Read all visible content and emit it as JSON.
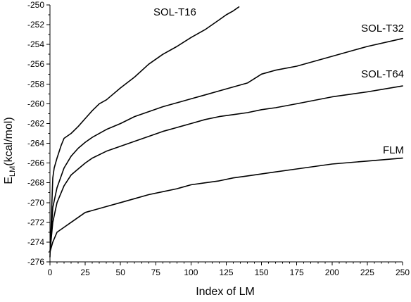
{
  "chart_data": {
    "type": "line",
    "title": "",
    "xlabel": "Index of LM",
    "ylabel_main": "E",
    "ylabel_sub": "LM",
    "ylabel_unit": "(kcal/mol)",
    "xlim": [
      0,
      250
    ],
    "ylim": [
      -276,
      -250
    ],
    "x_ticks": [
      0,
      25,
      50,
      75,
      100,
      125,
      150,
      175,
      200,
      225,
      250
    ],
    "y_ticks": [
      -276,
      -274,
      -272,
      -270,
      -268,
      -266,
      -264,
      -262,
      -260,
      -258,
      -256,
      -254,
      -252,
      -250
    ],
    "grid": false,
    "legend": "inline labels",
    "series": [
      {
        "name": "SOL-T16",
        "x": [
          0,
          1,
          2,
          3,
          5,
          8,
          10,
          15,
          20,
          25,
          30,
          35,
          40,
          50,
          60,
          70,
          80,
          90,
          100,
          110,
          120,
          125,
          130,
          134
        ],
        "y": [
          -275.5,
          -271.5,
          -267.5,
          -266.5,
          -265.5,
          -264.2,
          -263.5,
          -263.0,
          -262.3,
          -261.5,
          -260.7,
          -260.0,
          -259.6,
          -258.4,
          -257.3,
          -256.0,
          -255.0,
          -254.2,
          -253.3,
          -252.5,
          -251.5,
          -251.0,
          -250.6,
          -250.2
        ]
      },
      {
        "name": "SOL-T32",
        "x": [
          0,
          2,
          5,
          10,
          15,
          20,
          25,
          30,
          40,
          50,
          60,
          70,
          80,
          90,
          100,
          110,
          120,
          130,
          140,
          150,
          160,
          175,
          200,
          225,
          250
        ],
        "y": [
          -275.0,
          -270.5,
          -268.5,
          -266.5,
          -265.3,
          -264.5,
          -263.9,
          -263.4,
          -262.6,
          -262.0,
          -261.3,
          -260.8,
          -260.3,
          -259.9,
          -259.5,
          -259.1,
          -258.7,
          -258.3,
          -257.9,
          -257.0,
          -256.6,
          -256.2,
          -255.2,
          -254.2,
          -253.4
        ]
      },
      {
        "name": "SOL-T64",
        "x": [
          0,
          2,
          5,
          10,
          15,
          20,
          25,
          30,
          40,
          50,
          60,
          70,
          80,
          90,
          100,
          110,
          120,
          130,
          140,
          150,
          160,
          175,
          200,
          225,
          250
        ],
        "y": [
          -275.0,
          -272.0,
          -270.0,
          -268.3,
          -267.2,
          -266.6,
          -266.0,
          -265.5,
          -264.8,
          -264.3,
          -263.8,
          -263.3,
          -262.8,
          -262.4,
          -262.0,
          -261.6,
          -261.3,
          -261.1,
          -260.9,
          -260.6,
          -260.4,
          -260.0,
          -259.3,
          -258.8,
          -258.2
        ]
      },
      {
        "name": "FLM",
        "x": [
          0,
          2,
          5,
          10,
          15,
          20,
          25,
          30,
          40,
          50,
          60,
          70,
          80,
          90,
          100,
          110,
          120,
          130,
          140,
          150,
          160,
          175,
          200,
          225,
          250
        ],
        "y": [
          -275.0,
          -274.0,
          -273.0,
          -272.5,
          -272.0,
          -271.5,
          -271.0,
          -270.8,
          -270.4,
          -270.0,
          -269.6,
          -269.2,
          -268.9,
          -268.6,
          -268.2,
          -268.0,
          -267.8,
          -267.5,
          -267.3,
          -267.1,
          -266.9,
          -266.6,
          -266.1,
          -265.8,
          -265.5
        ]
      }
    ]
  }
}
